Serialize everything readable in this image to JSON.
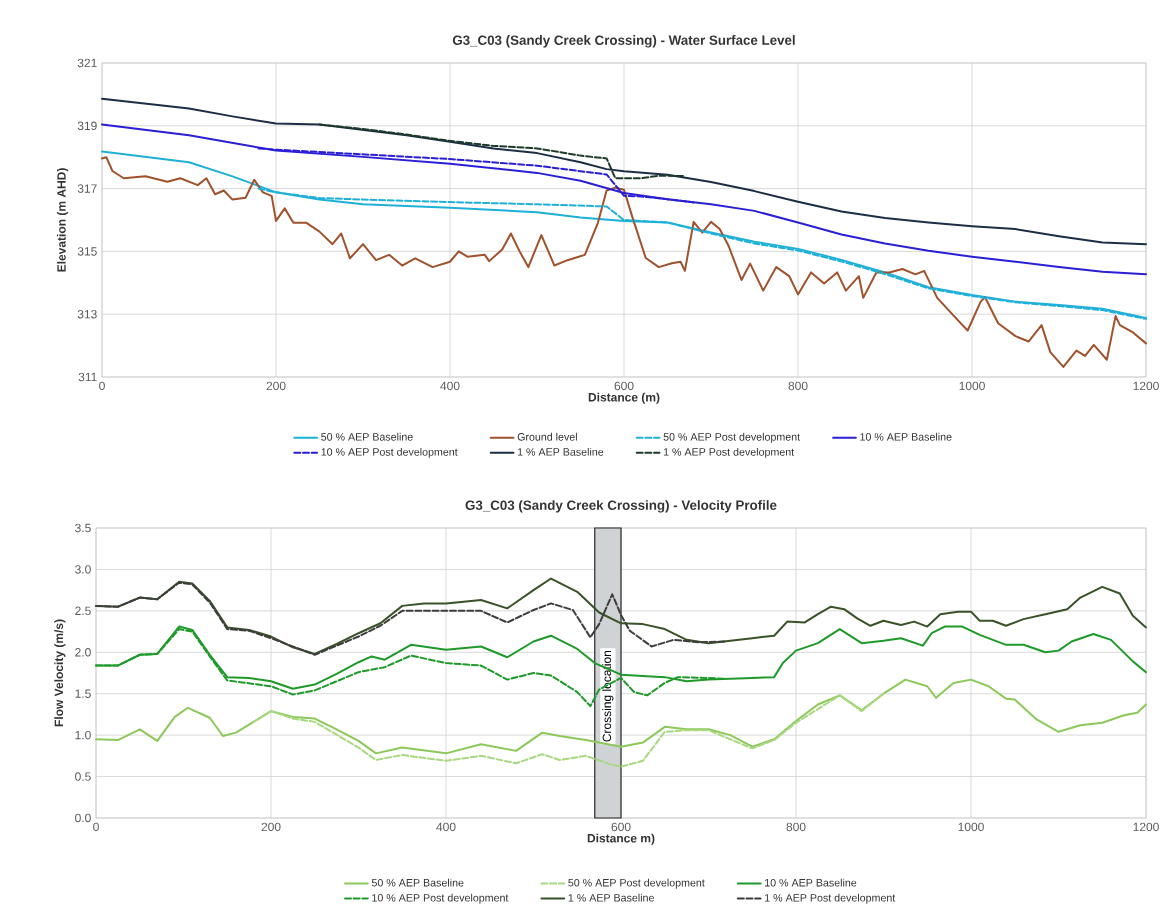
{
  "chart_data": [
    {
      "type": "line",
      "title": "G3_C03 (Sandy Creek Crossing) - Water Surface Level",
      "xlabel": "Distance (m)",
      "ylabel": "Elevation (m AHD)",
      "xlim": [
        0,
        1200
      ],
      "xticks": [
        0,
        200,
        400,
        600,
        800,
        1000,
        1200
      ],
      "ylim": [
        311,
        321
      ],
      "yticks": [
        311,
        313,
        315,
        317,
        319,
        321
      ],
      "grid": true,
      "legend": "bottom",
      "series": [
        {
          "name": "50 % AEP Baseline",
          "color": "#1fb0d8",
          "line_style": "solid",
          "x": [
            0,
            100,
            150,
            200,
            250,
            300,
            400,
            500,
            550,
            600,
            650,
            700,
            750,
            800,
            850,
            900,
            950,
            1000,
            1050,
            1100,
            1150,
            1200
          ],
          "values": [
            318.18,
            317.84,
            317.39,
            316.88,
            316.65,
            316.5,
            316.39,
            316.25,
            316.08,
            315.97,
            315.92,
            315.6,
            315.31,
            315.08,
            314.73,
            314.33,
            313.86,
            313.61,
            313.4,
            313.29,
            313.17,
            312.88
          ]
        },
        {
          "name": "Ground level",
          "color": "#a0522d",
          "line_style": "solid",
          "x": [
            0,
            5,
            12,
            25,
            50,
            75,
            90,
            110,
            120,
            130,
            140,
            150,
            165,
            175,
            185,
            195,
            200,
            210,
            220,
            235,
            250,
            265,
            275,
            285,
            300,
            315,
            330,
            345,
            360,
            380,
            400,
            410,
            420,
            440,
            445,
            460,
            470,
            480,
            490,
            505,
            520,
            535,
            555,
            570,
            580,
            590,
            600,
            610,
            625,
            640,
            655,
            665,
            670,
            680,
            690,
            700,
            710,
            720,
            735,
            745,
            760,
            775,
            790,
            800,
            815,
            830,
            845,
            855,
            870,
            875,
            890,
            905,
            920,
            935,
            945,
            960,
            985,
            995,
            1010,
            1015,
            1030,
            1050,
            1065,
            1080,
            1090,
            1105,
            1120,
            1130,
            1140,
            1155,
            1165,
            1170,
            1185,
            1200
          ],
          "values": [
            317.96,
            318.0,
            317.56,
            317.33,
            317.39,
            317.22,
            317.33,
            317.11,
            317.33,
            316.82,
            316.94,
            316.65,
            316.71,
            317.28,
            316.88,
            316.77,
            315.97,
            316.37,
            315.91,
            315.91,
            315.63,
            315.23,
            315.57,
            314.78,
            315.23,
            314.72,
            314.89,
            314.55,
            314.78,
            314.5,
            314.67,
            315.0,
            314.83,
            314.89,
            314.69,
            315.06,
            315.57,
            315.0,
            314.5,
            315.52,
            314.55,
            314.72,
            314.89,
            315.91,
            316.94,
            317.03,
            316.96,
            316.06,
            314.79,
            314.5,
            314.62,
            314.67,
            314.38,
            315.94,
            315.6,
            315.94,
            315.71,
            315.19,
            314.09,
            314.61,
            313.75,
            314.5,
            314.21,
            313.63,
            314.33,
            313.98,
            314.33,
            313.75,
            314.21,
            313.52,
            314.33,
            314.33,
            314.44,
            314.27,
            314.38,
            313.52,
            312.77,
            312.48,
            313.4,
            313.54,
            312.71,
            312.3,
            312.13,
            312.65,
            311.79,
            311.32,
            311.84,
            311.67,
            312.02,
            311.55,
            312.94,
            312.65,
            312.42,
            312.07
          ]
        },
        {
          "name": "50 % AEP Post development",
          "color": "#1fb0d8",
          "line_style": "dashed",
          "x": [
            180,
            200,
            250,
            300,
            400,
            500,
            580,
            600,
            650,
            700,
            750,
            800,
            850,
            900,
            950,
            1000,
            1050,
            1100,
            1150,
            1200
          ],
          "values": [
            317.0,
            316.88,
            316.7,
            316.65,
            316.57,
            316.5,
            316.43,
            316.0,
            315.92,
            315.57,
            315.25,
            315.03,
            314.68,
            314.28,
            313.82,
            313.58,
            313.38,
            313.26,
            313.13,
            312.85
          ]
        },
        {
          "name": "10 % AEP Baseline",
          "color": "#2b1fd6",
          "line_style": "solid",
          "x": [
            0,
            100,
            200,
            300,
            400,
            500,
            550,
            600,
            650,
            700,
            750,
            800,
            850,
            900,
            950,
            1000,
            1050,
            1100,
            1150,
            1200
          ],
          "values": [
            319.04,
            318.7,
            318.21,
            318.01,
            317.79,
            317.5,
            317.25,
            316.86,
            316.66,
            316.5,
            316.29,
            315.92,
            315.54,
            315.25,
            315.02,
            314.83,
            314.67,
            314.5,
            314.35,
            314.27
          ]
        },
        {
          "name": "10 % AEP Post development",
          "color": "#2b1fd6",
          "line_style": "dashed",
          "x": [
            180,
            200,
            300,
            400,
            500,
            580,
            600,
            620,
            650,
            680
          ],
          "values": [
            318.28,
            318.24,
            318.09,
            317.94,
            317.73,
            317.45,
            316.77,
            316.75,
            316.66,
            316.56
          ]
        },
        {
          "name": "1 % AEP Baseline",
          "color": "#1c2e45",
          "line_style": "solid",
          "x": [
            0,
            100,
            150,
            200,
            250,
            300,
            350,
            400,
            450,
            500,
            550,
            580,
            600,
            650,
            700,
            750,
            800,
            850,
            900,
            950,
            1000,
            1050,
            1100,
            1150,
            1200
          ],
          "values": [
            319.86,
            319.55,
            319.3,
            319.07,
            319.04,
            318.87,
            318.7,
            318.49,
            318.28,
            318.13,
            317.84,
            317.62,
            317.55,
            317.44,
            317.21,
            316.92,
            316.58,
            316.27,
            316.06,
            315.92,
            315.8,
            315.71,
            315.48,
            315.28,
            315.23
          ]
        },
        {
          "name": "1 % AEP Post development",
          "color": "#1e3a2a",
          "line_style": "dashed",
          "x": [
            250,
            300,
            350,
            400,
            450,
            500,
            550,
            580,
            590,
            620,
            640,
            670
          ],
          "values": [
            319.04,
            318.9,
            318.72,
            318.52,
            318.36,
            318.28,
            318.05,
            317.96,
            317.33,
            317.33,
            317.41,
            317.4
          ]
        }
      ]
    },
    {
      "type": "line",
      "title": "G3_C03 (Sandy Creek Crossing) - Velocity Profile",
      "xlabel": "Distance m)",
      "ylabel": "Flow Velocity (m/s)",
      "xlim": [
        0,
        1200
      ],
      "xticks": [
        0,
        200,
        400,
        600,
        800,
        1000,
        1200
      ],
      "ylim": [
        0,
        3.5
      ],
      "yticks": [
        {
          "value": 0,
          "label": "0.0"
        },
        {
          "value": 0.5,
          "label": "0.5"
        },
        {
          "value": 1,
          "label": "1.0"
        },
        {
          "value": 1.5,
          "label": "1.5"
        },
        {
          "value": 2,
          "label": "2.0"
        },
        {
          "value": 2.5,
          "label": "2.5"
        },
        {
          "value": 3,
          "label": "3.0"
        },
        {
          "value": 3.5,
          "label": "3.5"
        }
      ],
      "grid": true,
      "legend": "bottom",
      "bands": [
        {
          "axis": "x",
          "from": 570,
          "to": 600,
          "label": "Crossing location",
          "color": "#d0d3d6"
        }
      ],
      "series": [
        {
          "name": "50 % AEP Baseline",
          "color": "#8cc85a",
          "line_style": "solid",
          "x": [
            0,
            25,
            50,
            70,
            90,
            105,
            130,
            145,
            160,
            180,
            200,
            225,
            250,
            275,
            300,
            320,
            350,
            400,
            440,
            480,
            510,
            530,
            560,
            600,
            625,
            650,
            675,
            700,
            725,
            750,
            775,
            800,
            825,
            850,
            875,
            900,
            925,
            950,
            960,
            980,
            1000,
            1020,
            1040,
            1050,
            1075,
            1100,
            1125,
            1150,
            1175,
            1190,
            1200
          ],
          "values": [
            0.95,
            0.94,
            1.07,
            0.93,
            1.22,
            1.33,
            1.21,
            0.99,
            1.03,
            1.16,
            1.29,
            1.22,
            1.2,
            1.07,
            0.93,
            0.78,
            0.85,
            0.78,
            0.89,
            0.81,
            1.03,
            0.99,
            0.94,
            0.86,
            0.91,
            1.1,
            1.07,
            1.07,
            1.0,
            0.86,
            0.95,
            1.17,
            1.37,
            1.48,
            1.3,
            1.5,
            1.67,
            1.59,
            1.45,
            1.63,
            1.67,
            1.59,
            1.44,
            1.43,
            1.19,
            1.04,
            1.12,
            1.15,
            1.24,
            1.27,
            1.37
          ]
        },
        {
          "name": "50 % AEP Post development",
          "color": "#a8d880",
          "line_style": "dashed",
          "x": [
            180,
            200,
            225,
            250,
            300,
            320,
            350,
            400,
            440,
            480,
            510,
            530,
            560,
            590,
            600,
            625,
            650,
            675,
            700,
            750,
            775,
            800,
            850,
            875,
            900
          ],
          "values": [
            1.16,
            1.29,
            1.2,
            1.16,
            0.85,
            0.7,
            0.76,
            0.69,
            0.75,
            0.66,
            0.77,
            0.7,
            0.75,
            0.64,
            0.62,
            0.69,
            1.04,
            1.06,
            1.06,
            0.84,
            0.94,
            1.15,
            1.48,
            1.29,
            1.5
          ]
        },
        {
          "name": "10 % AEP Baseline",
          "color": "#1f9a2a",
          "line_style": "solid",
          "x": [
            0,
            25,
            50,
            70,
            95,
            110,
            130,
            150,
            175,
            200,
            225,
            250,
            275,
            300,
            315,
            330,
            360,
            400,
            440,
            470,
            500,
            520,
            550,
            570,
            600,
            650,
            675,
            700,
            750,
            775,
            785,
            800,
            825,
            850,
            875,
            900,
            920,
            945,
            955,
            970,
            990,
            1010,
            1040,
            1060,
            1085,
            1100,
            1115,
            1140,
            1160,
            1185,
            1200
          ],
          "values": [
            1.84,
            1.84,
            1.97,
            1.98,
            2.31,
            2.27,
            1.97,
            1.7,
            1.69,
            1.65,
            1.56,
            1.61,
            1.74,
            1.88,
            1.95,
            1.91,
            2.09,
            2.03,
            2.07,
            1.94,
            2.13,
            2.2,
            2.04,
            1.87,
            1.73,
            1.7,
            1.65,
            1.67,
            1.69,
            1.7,
            1.87,
            2.02,
            2.11,
            2.28,
            2.11,
            2.14,
            2.17,
            2.08,
            2.23,
            2.31,
            2.31,
            2.21,
            2.09,
            2.09,
            2.0,
            2.02,
            2.13,
            2.22,
            2.15,
            1.89,
            1.76
          ]
        },
        {
          "name": "10 % AEP Post development",
          "color": "#1f9a2a",
          "line_style": "dashed",
          "x": [
            0,
            25,
            50,
            70,
            95,
            110,
            130,
            150,
            200,
            225,
            250,
            300,
            330,
            360,
            400,
            440,
            470,
            500,
            520,
            550,
            565,
            575,
            600,
            615,
            630,
            650,
            665,
            700,
            720
          ],
          "values": [
            1.84,
            1.84,
            1.97,
            1.98,
            2.28,
            2.25,
            1.95,
            1.66,
            1.59,
            1.49,
            1.54,
            1.76,
            1.82,
            1.96,
            1.87,
            1.84,
            1.67,
            1.75,
            1.72,
            1.52,
            1.35,
            1.55,
            1.69,
            1.52,
            1.48,
            1.63,
            1.7,
            1.69,
            1.68
          ]
        },
        {
          "name": "1 % AEP Baseline",
          "color": "#3a5228",
          "line_style": "solid",
          "x": [
            0,
            25,
            50,
            70,
            95,
            110,
            130,
            150,
            175,
            200,
            225,
            250,
            275,
            300,
            325,
            350,
            375,
            400,
            440,
            470,
            500,
            520,
            550,
            575,
            600,
            625,
            650,
            675,
            700,
            725,
            750,
            775,
            790,
            810,
            825,
            840,
            855,
            870,
            885,
            900,
            920,
            935,
            950,
            965,
            985,
            1000,
            1010,
            1025,
            1040,
            1060,
            1085,
            1110,
            1125,
            1150,
            1170,
            1185,
            1200
          ],
          "values": [
            2.56,
            2.55,
            2.66,
            2.64,
            2.85,
            2.83,
            2.62,
            2.3,
            2.27,
            2.19,
            2.06,
            1.98,
            2.1,
            2.23,
            2.35,
            2.56,
            2.59,
            2.59,
            2.63,
            2.53,
            2.75,
            2.89,
            2.73,
            2.48,
            2.35,
            2.34,
            2.28,
            2.15,
            2.11,
            2.14,
            2.17,
            2.2,
            2.37,
            2.36,
            2.46,
            2.55,
            2.52,
            2.41,
            2.32,
            2.38,
            2.33,
            2.37,
            2.31,
            2.46,
            2.49,
            2.49,
            2.38,
            2.38,
            2.32,
            2.4,
            2.46,
            2.52,
            2.66,
            2.79,
            2.71,
            2.44,
            2.3
          ]
        },
        {
          "name": "1 % AEP Post development",
          "color": "#3d3d3d",
          "line_style": "dashed",
          "x": [
            0,
            25,
            50,
            70,
            95,
            110,
            130,
            150,
            175,
            200,
            250,
            300,
            325,
            350,
            400,
            440,
            470,
            500,
            520,
            545,
            565,
            575,
            590,
            600,
            610,
            635,
            660,
            690,
            720
          ],
          "values": [
            2.56,
            2.55,
            2.66,
            2.64,
            2.84,
            2.82,
            2.6,
            2.28,
            2.26,
            2.17,
            1.97,
            2.19,
            2.32,
            2.5,
            2.5,
            2.5,
            2.36,
            2.51,
            2.59,
            2.51,
            2.18,
            2.34,
            2.7,
            2.45,
            2.26,
            2.07,
            2.15,
            2.12,
            2.13
          ]
        }
      ]
    }
  ]
}
